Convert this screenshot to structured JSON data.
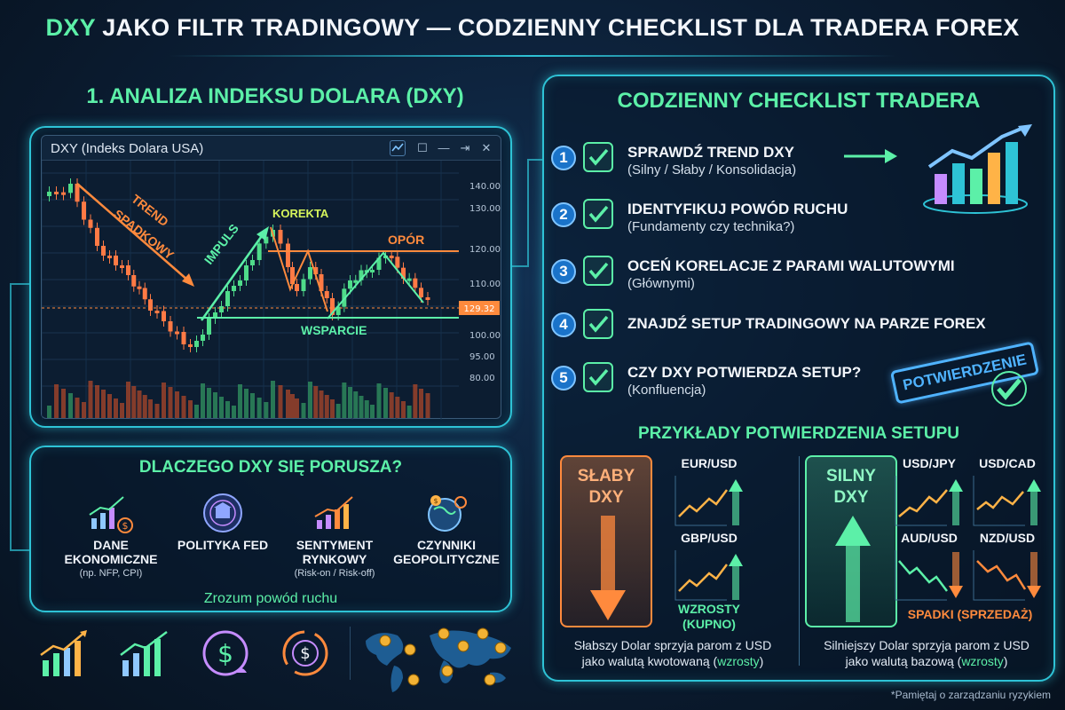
{
  "header": {
    "title_accent": "DXY",
    "title_rest": " JAKO FILTR TRADINGOWY — CODZIENNY CHECKLIST DLA TRADERA FOREX"
  },
  "left": {
    "section_title": "1. ANALIZA INDEKSU DOLARA (DXY)",
    "chart": {
      "window_title": "DXY (Indeks Dolara USA)",
      "price_ticks": [
        "140.00",
        "130.00",
        "120.00",
        "110.00",
        "100.00",
        "95.00",
        "80.00"
      ],
      "current_price": "129.32",
      "labels": {
        "trend": [
          "TREND",
          "SPADKOWY"
        ],
        "impulse": "IMPULS",
        "correction": "KOREKTA",
        "resistance": "OPÓR",
        "support": "WSPARCIE"
      }
    },
    "why": {
      "title": "DLACZEGO DXY SIĘ PORUSZA?",
      "items": [
        {
          "label": "DANE EKONOMICZNE",
          "sub": "(np. NFP, CPI)"
        },
        {
          "label": "POLITYKA FED",
          "sub": ""
        },
        {
          "label": "SENTYMENT RYNKOWY",
          "sub": "(Risk-on / Risk-off)"
        },
        {
          "label": "CZYNNIKI GEOPOLITYCZNE",
          "sub": ""
        }
      ],
      "footer": "Zrozum powód ruchu"
    }
  },
  "right": {
    "title": "CODZIENNY CHECKLIST TRADERA",
    "steps": [
      {
        "num": "1",
        "title": "SPRAWDŹ TREND DXY",
        "sub": "(Silny / Słaby / Konsolidacja)"
      },
      {
        "num": "2",
        "title": "IDENTYFIKUJ POWÓD RUCHU",
        "sub": "(Fundamenty czy technika?)"
      },
      {
        "num": "3",
        "title": "OCEŃ KORELACJE Z PARAMI WALUTOWYMI",
        "sub": "(Głównymi)"
      },
      {
        "num": "4",
        "title": "ZNAJDŹ SETUP TRADINGOWY NA PARZE FOREX",
        "sub": ""
      },
      {
        "num": "5",
        "title": "CZY DXY POTWIERDZA SETUP?",
        "sub": "(Konfluencja)"
      }
    ],
    "stamp": "POTWIERDZENIE",
    "examples": {
      "title": "PRZYKŁADY POTWIERDZENIA SETUPU",
      "weak": {
        "label_1": "SŁABY",
        "label_2": "DXY",
        "pairs": [
          "EUR/USD",
          "GBP/USD"
        ],
        "result_1": "WZROSTY",
        "result_2": "(KUPNO)",
        "foot_1": "Słabszy Dolar sprzyja parom z USD",
        "foot_2a": "jako walutą kwotowaną (",
        "foot_2b": "wzrosty",
        "foot_2c": ")"
      },
      "strong": {
        "label_1": "SILNY",
        "label_2": "DXY",
        "pairs": [
          "USD/JPY",
          "USD/CAD",
          "AUD/USD",
          "NZD/USD"
        ],
        "result": "SPADKI (SPRZEDAŻ)",
        "foot_1": "Silniejszy Dolar sprzyja parom z USD",
        "foot_2a": "jako walutą bazową (",
        "foot_2b": "wzrosty",
        "foot_2c": ")"
      }
    }
  },
  "footer_note": "*Pamiętaj o zarządzaniu ryzykiem",
  "colors": {
    "accent_green": "#5cf0a8",
    "accent_cyan": "#2ec3d6",
    "orange": "#ff8a3d",
    "candle_up": "#4fdc8a",
    "candle_down": "#ff7a45"
  }
}
